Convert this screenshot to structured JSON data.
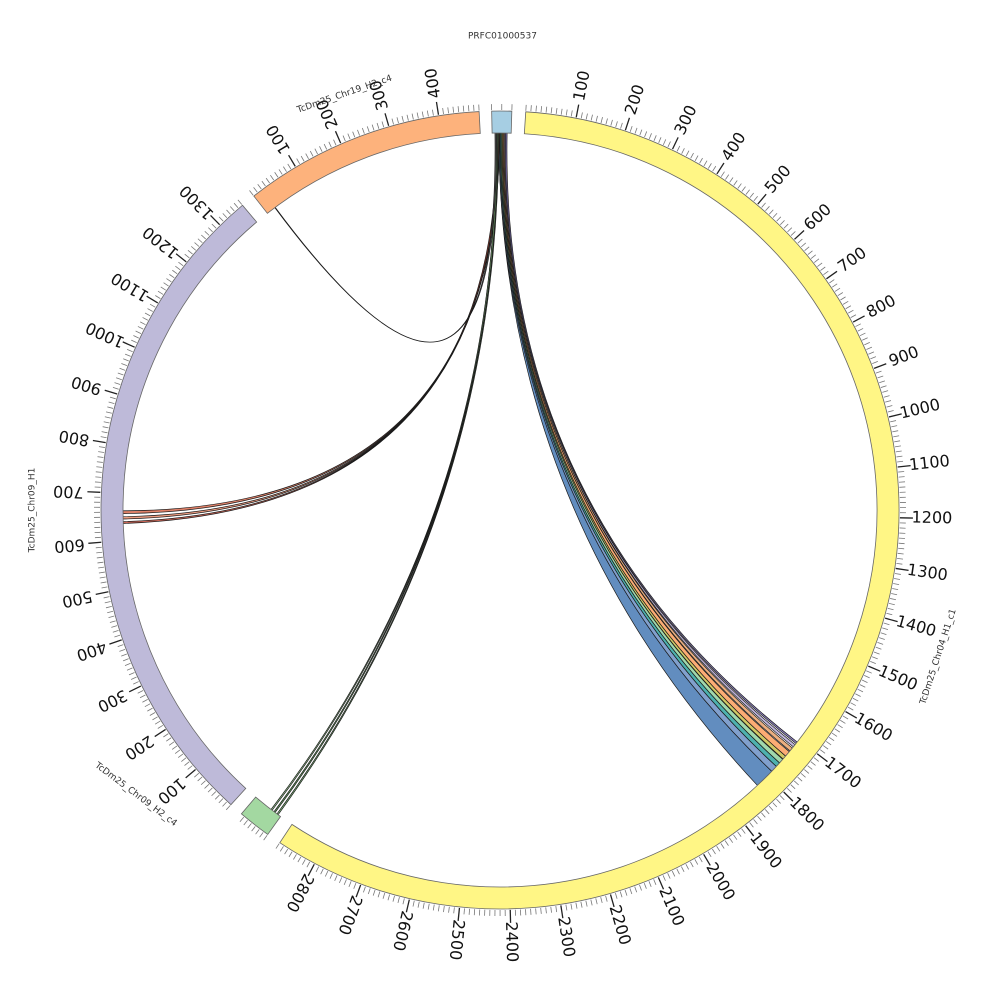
{
  "diagram": {
    "type": "circos",
    "segments": [
      {
        "id": "prfc",
        "name": "PRFC01000537",
        "length": 20,
        "color": "#a6cee3",
        "ticks": []
      },
      {
        "id": "chr04",
        "name": "TcDm25_Chr04_H1_c1",
        "length": 2880,
        "color": "#fff685",
        "ticks": [
          100,
          200,
          300,
          400,
          500,
          600,
          700,
          800,
          900,
          1000,
          1100,
          1200,
          1300,
          1400,
          1500,
          1600,
          1700,
          1800,
          1900,
          2000,
          2100,
          2200,
          2300,
          2400,
          2500,
          2600,
          2700,
          2800
        ]
      },
      {
        "id": "chr09c4",
        "name": "TcDm25_Chr09_H2_c4",
        "length": 68,
        "color": "#a3d8a1",
        "ticks": []
      },
      {
        "id": "chr09",
        "name": "TcDm25_Chr09_H1",
        "length": 1360,
        "color": "#bebad9",
        "ticks": [
          100,
          200,
          300,
          400,
          500,
          600,
          700,
          800,
          900,
          1000,
          1100,
          1200,
          1300
        ]
      },
      {
        "id": "chr19",
        "name": "TcDm25_Chr19_H2_c4",
        "length": 480,
        "color": "#fdb27c",
        "ticks": [
          100,
          200,
          300,
          400
        ]
      }
    ],
    "links": [
      {
        "from": "prfc",
        "from_pos": 7,
        "to": "chr04",
        "to_pos": 1808,
        "width": 42,
        "color": "#4679b4"
      },
      {
        "from": "prfc",
        "from_pos": 7,
        "to": "chr04",
        "to_pos": 1780,
        "width": 14,
        "color": "#6b8fc4"
      },
      {
        "from": "prfc",
        "from_pos": 8,
        "to": "chr04",
        "to_pos": 1768,
        "width": 10,
        "color": "#2fa3a0"
      },
      {
        "from": "prfc",
        "from_pos": 9,
        "to": "chr04",
        "to_pos": 1758,
        "width": 10,
        "color": "#8fd19e"
      },
      {
        "from": "prfc",
        "from_pos": 10,
        "to": "chr04",
        "to_pos": 1748,
        "width": 8,
        "color": "#c8c04a"
      },
      {
        "from": "prfc",
        "from_pos": 11,
        "to": "chr04",
        "to_pos": 1738,
        "width": 12,
        "color": "#fc9d5c"
      },
      {
        "from": "prfc",
        "from_pos": 12,
        "to": "chr04",
        "to_pos": 1726,
        "width": 8,
        "color": "#e8a06a"
      },
      {
        "from": "prfc",
        "from_pos": 13,
        "to": "chr04",
        "to_pos": 1716,
        "width": 6,
        "color": "#b3a6d4"
      },
      {
        "from": "prfc",
        "from_pos": 14,
        "to": "chr04",
        "to_pos": 1708,
        "width": 4,
        "color": "#7a6db5"
      },
      {
        "from": "prfc",
        "from_pos": 6,
        "to": "chr09",
        "to_pos": 660,
        "width": 6,
        "color": "#d96b4f"
      },
      {
        "from": "prfc",
        "from_pos": 6,
        "to": "chr09",
        "to_pos": 648,
        "width": 5,
        "color": "#e88a6a"
      },
      {
        "from": "prfc",
        "from_pos": 5,
        "to": "chr09",
        "to_pos": 638,
        "width": 4,
        "color": "#c24b3a"
      },
      {
        "from": "prfc",
        "from_pos": 5,
        "to": "chr09c4",
        "to_pos": 8,
        "width": 3,
        "color": "#6fae6a"
      },
      {
        "from": "prfc",
        "from_pos": 4,
        "to": "chr09c4",
        "to_pos": 16,
        "width": 3,
        "color": "#4f8f4a"
      },
      {
        "from": "prfc",
        "from_pos": 4,
        "to": "chr09c4",
        "to_pos": 24,
        "width": 3,
        "color": "#8cc285"
      },
      {
        "from": "prfc",
        "from_pos": 3,
        "to": "chr19",
        "to_pos": 20,
        "width": 1,
        "color": "#555555"
      }
    ]
  }
}
